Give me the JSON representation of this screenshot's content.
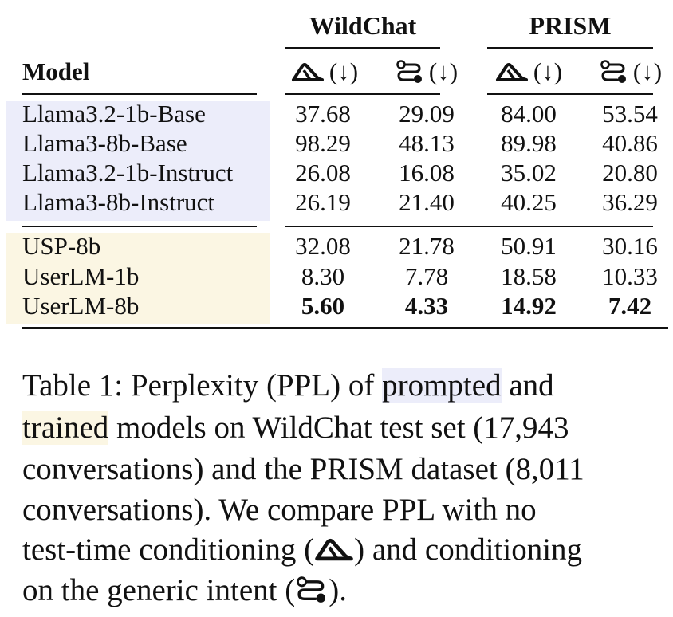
{
  "table": {
    "group_headers": [
      "WildChat",
      "PRISM"
    ],
    "model_header": "Model",
    "column_arrow": "(↓)",
    "column_icons": [
      "no-conditioning-icon",
      "generic-intent-icon",
      "no-conditioning-icon",
      "generic-intent-icon"
    ],
    "prompted_rows": [
      {
        "model": "Llama3.2-1b-Base",
        "values": [
          "37.68",
          "29.09",
          "84.00",
          "53.54"
        ]
      },
      {
        "model": "Llama3-8b-Base",
        "values": [
          "98.29",
          "48.13",
          "89.98",
          "40.86"
        ]
      },
      {
        "model": "Llama3.2-1b-Instruct",
        "values": [
          "26.08",
          "16.08",
          "35.02",
          "20.80"
        ]
      },
      {
        "model": "Llama3-8b-Instruct",
        "values": [
          "26.19",
          "21.40",
          "40.25",
          "36.29"
        ]
      }
    ],
    "trained_rows": [
      {
        "model": "USP-8b",
        "values": [
          "32.08",
          "21.78",
          "50.91",
          "30.16"
        ]
      },
      {
        "model": "UserLM-1b",
        "values": [
          "8.30",
          "7.78",
          "18.58",
          "10.33"
        ]
      },
      {
        "model": "UserLM-8b",
        "values": [
          "5.60",
          "4.33",
          "14.92",
          "7.42"
        ],
        "bold": true
      }
    ],
    "colors": {
      "prompted_highlight": "#ecedfa",
      "trained_highlight": "#fbf6e3"
    }
  },
  "caption": {
    "line1_a": "Table 1:  Perplexity (PPL) of ",
    "line1_prompted": "prompted",
    "line1_b": " and",
    "line2_trained": "trained",
    "line2_b": " models on WildChat test set (17,943",
    "line3": "conversations) and the PRISM dataset (8,011",
    "line4": "conversations).  We compare PPL with no",
    "line5_a": "test-time conditioning (",
    "line5_b": ") and conditioning",
    "line6_a": "on the generic intent (",
    "line6_b": ")."
  }
}
